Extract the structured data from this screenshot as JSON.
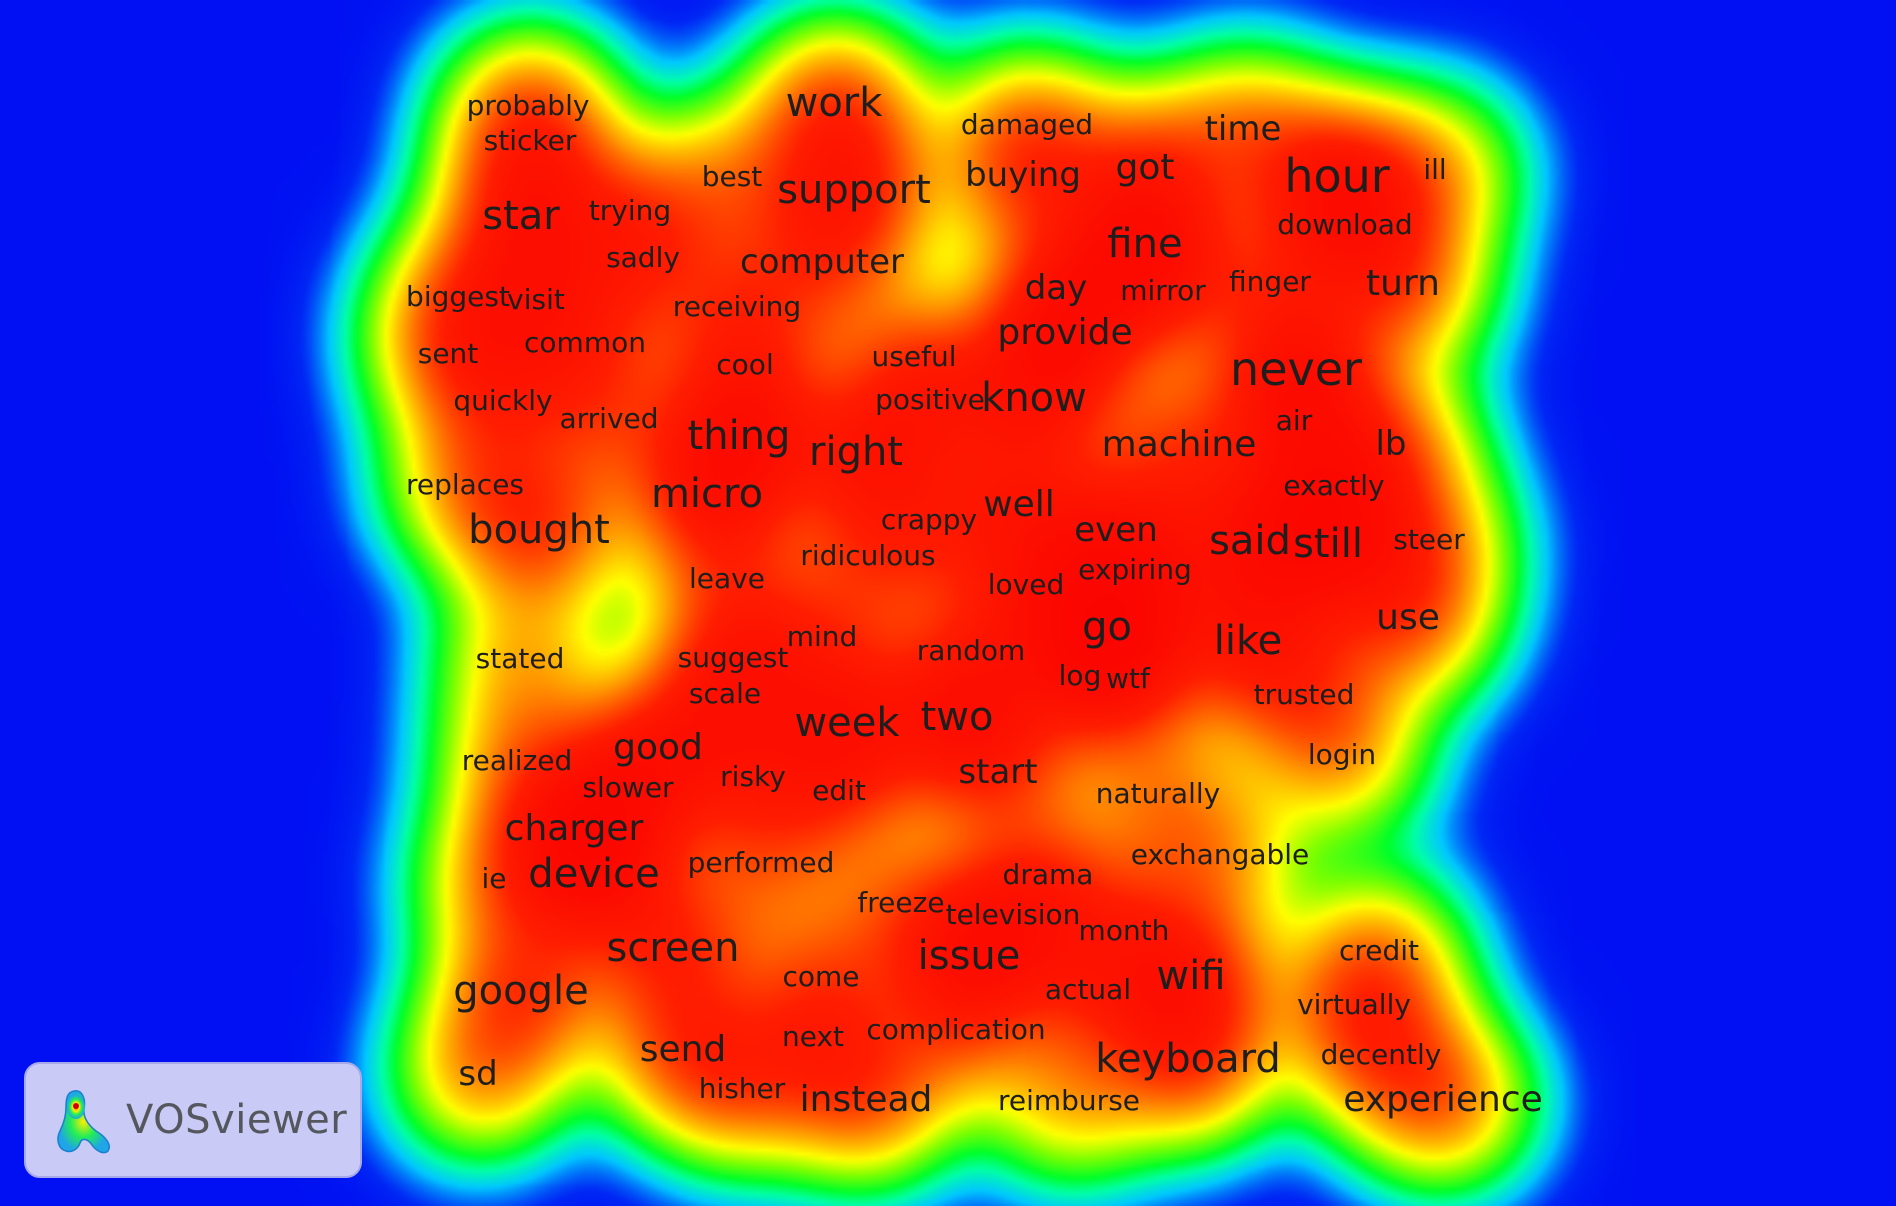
{
  "visualization": {
    "type": "density-map",
    "colors": {
      "background": "#0010f2",
      "low": "#00ff66",
      "mid": "#ffff00",
      "high": "#ff1a00",
      "text": "#1e1e1e"
    },
    "logo": {
      "text": "VOSviewer"
    },
    "terms": [
      {
        "label": "probably",
        "weight": 1
      },
      {
        "label": "sticker",
        "weight": 1
      },
      {
        "label": "work",
        "weight": 4
      },
      {
        "label": "damaged",
        "weight": 1
      },
      {
        "label": "time",
        "weight": 2
      },
      {
        "label": "hour",
        "weight": 5
      },
      {
        "label": "ill",
        "weight": 1
      },
      {
        "label": "best",
        "weight": 1
      },
      {
        "label": "support",
        "weight": 4
      },
      {
        "label": "buying",
        "weight": 2
      },
      {
        "label": "got",
        "weight": 3
      },
      {
        "label": "star",
        "weight": 4
      },
      {
        "label": "trying",
        "weight": 1
      },
      {
        "label": "download",
        "weight": 1
      },
      {
        "label": "fine",
        "weight": 4
      },
      {
        "label": "sadly",
        "weight": 1
      },
      {
        "label": "computer",
        "weight": 2
      },
      {
        "label": "biggest",
        "weight": 1
      },
      {
        "label": "visit",
        "weight": 1
      },
      {
        "label": "day",
        "weight": 2
      },
      {
        "label": "mirror",
        "weight": 1
      },
      {
        "label": "finger",
        "weight": 1
      },
      {
        "label": "turn",
        "weight": 3
      },
      {
        "label": "receiving",
        "weight": 1
      },
      {
        "label": "provide",
        "weight": 3
      },
      {
        "label": "sent",
        "weight": 1
      },
      {
        "label": "common",
        "weight": 1
      },
      {
        "label": "cool",
        "weight": 1
      },
      {
        "label": "useful",
        "weight": 1
      },
      {
        "label": "never",
        "weight": 5
      },
      {
        "label": "quickly",
        "weight": 1
      },
      {
        "label": "arrived",
        "weight": 1
      },
      {
        "label": "positive",
        "weight": 1
      },
      {
        "label": "know",
        "weight": 4
      },
      {
        "label": "thing",
        "weight": 4
      },
      {
        "label": "air",
        "weight": 1
      },
      {
        "label": "right",
        "weight": 4
      },
      {
        "label": "machine",
        "weight": 3
      },
      {
        "label": "lb",
        "weight": 2
      },
      {
        "label": "replaces",
        "weight": 1
      },
      {
        "label": "micro",
        "weight": 4
      },
      {
        "label": "exactly",
        "weight": 1
      },
      {
        "label": "bought",
        "weight": 4
      },
      {
        "label": "well",
        "weight": 3
      },
      {
        "label": "crappy",
        "weight": 1
      },
      {
        "label": "even",
        "weight": 2
      },
      {
        "label": "said",
        "weight": 4
      },
      {
        "label": "still",
        "weight": 4
      },
      {
        "label": "steer",
        "weight": 1
      },
      {
        "label": "ridiculous",
        "weight": 1
      },
      {
        "label": "expiring",
        "weight": 1
      },
      {
        "label": "leave",
        "weight": 1
      },
      {
        "label": "loved",
        "weight": 1
      },
      {
        "label": "use",
        "weight": 3
      },
      {
        "label": "go",
        "weight": 4
      },
      {
        "label": "like",
        "weight": 4
      },
      {
        "label": "mind",
        "weight": 1
      },
      {
        "label": "stated",
        "weight": 1
      },
      {
        "label": "suggest",
        "weight": 1
      },
      {
        "label": "random",
        "weight": 1
      },
      {
        "label": "log",
        "weight": 1
      },
      {
        "label": "wtf",
        "weight": 1
      },
      {
        "label": "scale",
        "weight": 1
      },
      {
        "label": "trusted",
        "weight": 1
      },
      {
        "label": "two",
        "weight": 4
      },
      {
        "label": "week",
        "weight": 4
      },
      {
        "label": "good",
        "weight": 3
      },
      {
        "label": "login",
        "weight": 1
      },
      {
        "label": "realized",
        "weight": 1
      },
      {
        "label": "risky",
        "weight": 1
      },
      {
        "label": "start",
        "weight": 2
      },
      {
        "label": "slower",
        "weight": 1
      },
      {
        "label": "edit",
        "weight": 1
      },
      {
        "label": "naturally",
        "weight": 1
      },
      {
        "label": "charger",
        "weight": 3
      },
      {
        "label": "exchangable",
        "weight": 1
      },
      {
        "label": "performed",
        "weight": 1
      },
      {
        "label": "device",
        "weight": 4
      },
      {
        "label": "ie",
        "weight": 1
      },
      {
        "label": "drama",
        "weight": 1
      },
      {
        "label": "freeze",
        "weight": 1
      },
      {
        "label": "television",
        "weight": 1
      },
      {
        "label": "month",
        "weight": 1
      },
      {
        "label": "credit",
        "weight": 1
      },
      {
        "label": "screen",
        "weight": 4
      },
      {
        "label": "issue",
        "weight": 4
      },
      {
        "label": "wifi",
        "weight": 4
      },
      {
        "label": "google",
        "weight": 4
      },
      {
        "label": "come",
        "weight": 1
      },
      {
        "label": "actual",
        "weight": 1
      },
      {
        "label": "virtually",
        "weight": 1
      },
      {
        "label": "complication",
        "weight": 1
      },
      {
        "label": "next",
        "weight": 1
      },
      {
        "label": "send",
        "weight": 3
      },
      {
        "label": "keyboard",
        "weight": 4
      },
      {
        "label": "decently",
        "weight": 1
      },
      {
        "label": "sd",
        "weight": 2
      },
      {
        "label": "hisher",
        "weight": 1
      },
      {
        "label": "instead",
        "weight": 3
      },
      {
        "label": "reimburse",
        "weight": 1
      },
      {
        "label": "experience",
        "weight": 3
      }
    ]
  }
}
